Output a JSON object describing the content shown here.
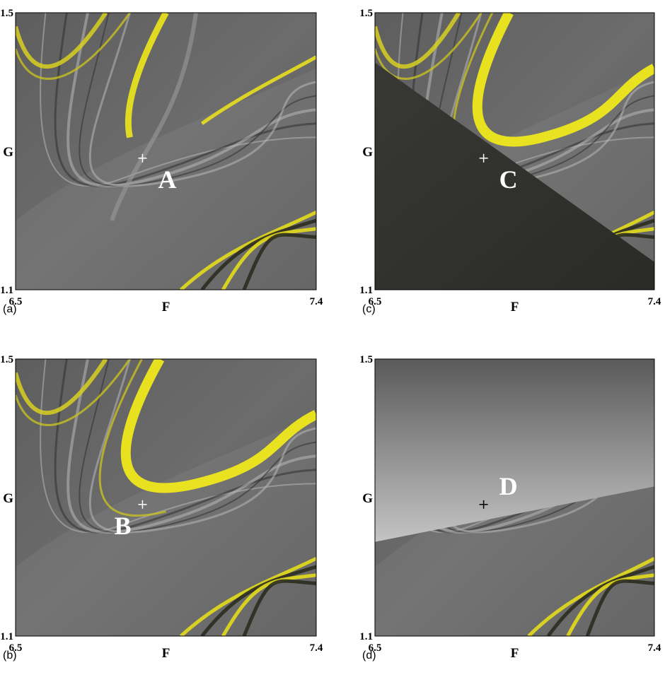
{
  "chart_data": [
    {
      "type": "image",
      "panel_label": "(a)",
      "x_label": "F",
      "y_label": "G",
      "xlim": [
        6.5,
        7.4
      ],
      "ylim": [
        1.1,
        1.5
      ],
      "xticks": [
        6.5,
        7.4
      ],
      "yticks": [
        1.1,
        1.5
      ],
      "point": {
        "x": 6.88,
        "y": 1.29,
        "label": "A"
      }
    },
    {
      "type": "image",
      "panel_label": "(b)",
      "x_label": "F",
      "y_label": "G",
      "xlim": [
        6.5,
        7.4
      ],
      "ylim": [
        1.1,
        1.5
      ],
      "xticks": [
        6.5,
        7.4
      ],
      "yticks": [
        1.1,
        1.5
      ],
      "point": {
        "x": 6.88,
        "y": 1.29,
        "label": "B"
      }
    },
    {
      "type": "image",
      "panel_label": "(c)",
      "x_label": "F",
      "y_label": "G",
      "xlim": [
        6.5,
        7.4
      ],
      "ylim": [
        1.1,
        1.5
      ],
      "xticks": [
        6.5,
        7.4
      ],
      "yticks": [
        1.1,
        1.5
      ],
      "point": {
        "x": 6.85,
        "y": 1.29,
        "label": "C"
      }
    },
    {
      "type": "image",
      "panel_label": "(d)",
      "x_label": "F",
      "y_label": "G",
      "xlim": [
        6.5,
        7.4
      ],
      "ylim": [
        1.1,
        1.5
      ],
      "xticks": [
        6.5,
        7.4
      ],
      "yticks": [
        1.1,
        1.5
      ],
      "point": {
        "x": 6.85,
        "y": 1.29,
        "label": "D"
      }
    }
  ]
}
